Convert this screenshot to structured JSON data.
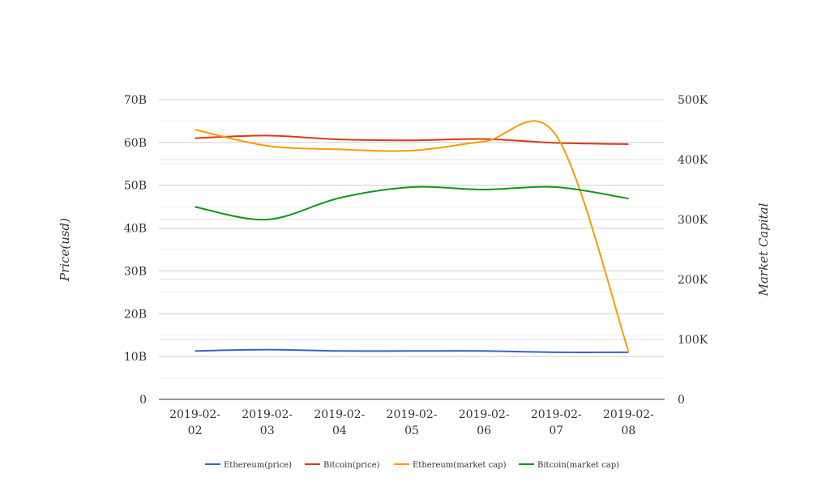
{
  "chart_data": {
    "type": "line",
    "categories": [
      "2019-02-02",
      "2019-02-03",
      "2019-02-04",
      "2019-02-05",
      "2019-02-06",
      "2019-02-07",
      "2019-02-08"
    ],
    "category_label_lines": [
      [
        "2019-02-",
        "02"
      ],
      [
        "2019-02-",
        "03"
      ],
      [
        "2019-02-",
        "04"
      ],
      [
        "2019-02-",
        "05"
      ],
      [
        "2019-02-",
        "06"
      ],
      [
        "2019-02-",
        "07"
      ],
      [
        "2019-02-",
        "08"
      ]
    ],
    "ylabel": "Price(usd)",
    "y2label": "Market Capital",
    "ylim": [
      0,
      70000000000
    ],
    "y2lim": [
      0,
      500000
    ],
    "yticks": [
      "0",
      "10B",
      "20B",
      "30B",
      "40B",
      "50B",
      "60B",
      "70B"
    ],
    "y2ticks": [
      "0",
      "100K",
      "200K",
      "300K",
      "400K",
      "500K"
    ],
    "grid": true,
    "legend_position": "bottom",
    "series": [
      {
        "name": "Ethereum(price)",
        "axis": "left",
        "color": "#3366cc",
        "values": [
          11300000000,
          11600000000,
          11300000000,
          11300000000,
          11300000000,
          11000000000,
          11000000000
        ]
      },
      {
        "name": "Bitcoin(price)",
        "axis": "left",
        "color": "#dc3912",
        "values": [
          61000000000,
          61600000000,
          60700000000,
          60500000000,
          60800000000,
          59900000000,
          59600000000
        ]
      },
      {
        "name": "Ethereum(market cap)",
        "axis": "right",
        "color": "#ff9900",
        "values": [
          450000,
          423000,
          417000,
          415000,
          430000,
          440000,
          80000
        ]
      },
      {
        "name": "Bitcoin(market cap)",
        "axis": "right",
        "color": "#109618",
        "values": [
          321000,
          300000,
          336000,
          354000,
          350000,
          354000,
          335000
        ]
      }
    ]
  }
}
